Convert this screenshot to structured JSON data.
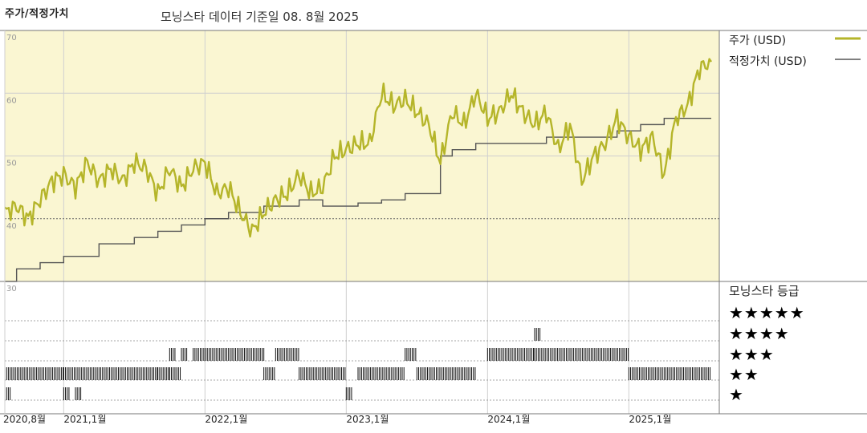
{
  "header": {
    "title": "주가/적정가치",
    "subtitle": "모닝스타 데이터 기준일 08. 8월 2025"
  },
  "legend": {
    "price_label": "주가 (USD)",
    "fair_value_label": "적정가치 (USD)",
    "rating_title": "모닝스타 등급"
  },
  "rating_levels": [
    "★★★★★",
    "★★★★",
    "★★★",
    "★★",
    "★"
  ],
  "colors": {
    "price_line": "#b5b52a",
    "fair_value_line": "#555555",
    "plot_background": "#faf6d2",
    "rating_bar": "#111111"
  },
  "chart_data": {
    "type": "line",
    "x_tick_labels": [
      "2020,8월",
      "2021,1월",
      "2022,1월",
      "2023,1월",
      "2024,1월",
      "2025,1월"
    ],
    "y_ticks": [
      70,
      60,
      50,
      40,
      30
    ],
    "ylim": [
      30,
      70
    ],
    "xlim": [
      "2020-08",
      "2025-08"
    ],
    "grid": true,
    "series": [
      {
        "name": "주가 (USD)",
        "x": [
          "2020-08",
          "2020-09",
          "2020-10",
          "2020-11",
          "2020-12",
          "2021-01",
          "2021-02",
          "2021-03",
          "2021-04",
          "2021-05",
          "2021-06",
          "2021-07",
          "2021-08",
          "2021-09",
          "2021-10",
          "2021-11",
          "2021-12",
          "2022-01",
          "2022-02",
          "2022-03",
          "2022-04",
          "2022-05",
          "2022-06",
          "2022-07",
          "2022-08",
          "2022-09",
          "2022-10",
          "2022-11",
          "2022-12",
          "2023-01",
          "2023-02",
          "2023-03",
          "2023-04",
          "2023-05",
          "2023-06",
          "2023-07",
          "2023-08",
          "2023-09",
          "2023-10",
          "2023-11",
          "2023-12",
          "2024-01",
          "2024-02",
          "2024-03",
          "2024-04",
          "2024-05",
          "2024-06",
          "2024-07",
          "2024-08",
          "2024-09",
          "2024-10",
          "2024-11",
          "2024-12",
          "2025-01",
          "2025-02",
          "2025-03",
          "2025-04",
          "2025-05",
          "2025-06",
          "2025-07",
          "2025-08"
        ],
        "values": [
          41,
          42,
          40,
          43,
          46,
          47,
          45,
          49,
          46,
          48,
          46,
          49,
          48,
          44,
          48,
          45,
          48,
          49,
          44,
          45,
          41,
          38,
          41,
          43,
          44,
          47,
          44,
          45,
          50,
          51,
          52,
          52,
          60,
          58,
          59,
          57,
          55,
          49,
          57,
          55,
          60,
          56,
          57,
          60,
          57,
          55,
          57,
          51,
          55,
          46,
          50,
          52,
          56,
          53,
          51,
          53,
          47,
          56,
          58,
          64,
          65
        ]
      },
      {
        "name": "적정가치 (USD)",
        "x": [
          "2020-08",
          "2020-09",
          "2020-11",
          "2021-01",
          "2021-04",
          "2021-07",
          "2021-09",
          "2021-11",
          "2022-01",
          "2022-03",
          "2022-06",
          "2022-09",
          "2022-11",
          "2023-02",
          "2023-04",
          "2023-06",
          "2023-09",
          "2023-10",
          "2023-12",
          "2024-03",
          "2024-06",
          "2024-09",
          "2024-12",
          "2025-02",
          "2025-04",
          "2025-08"
        ],
        "values": [
          30,
          32,
          33,
          34,
          36,
          37,
          38,
          39,
          40,
          41,
          42,
          43,
          42,
          42.5,
          43,
          44,
          50,
          51,
          52,
          52,
          53,
          53,
          54,
          55,
          56,
          56
        ]
      }
    ]
  },
  "rating_bars": [
    {
      "stars": 1,
      "segments": [
        [
          "2020-08",
          "2020-08"
        ],
        [
          "2021-01",
          "2021-01"
        ],
        [
          "2021-02",
          "2021-02"
        ],
        [
          "2023-01",
          "2023-01"
        ]
      ]
    },
    {
      "stars": 2,
      "segments": [
        [
          "2020-08",
          "2021-01"
        ],
        [
          "2021-01",
          "2021-09"
        ],
        [
          "2021-09",
          "2021-10"
        ],
        [
          "2021-10",
          "2021-11"
        ],
        [
          "2022-06",
          "2022-07"
        ],
        [
          "2022-09",
          "2023-01"
        ],
        [
          "2023-02",
          "2023-06"
        ],
        [
          "2023-07",
          "2023-12"
        ],
        [
          "2025-01",
          "2025-08"
        ]
      ]
    },
    {
      "stars": 3,
      "segments": [
        [
          "2021-10",
          "2021-10"
        ],
        [
          "2021-11",
          "2021-11"
        ],
        [
          "2021-12",
          "2022-06"
        ],
        [
          "2022-07",
          "2022-09"
        ],
        [
          "2023-06",
          "2023-07"
        ],
        [
          "2024-01",
          "2024-05"
        ],
        [
          "2024-05",
          "2025-01"
        ]
      ]
    },
    {
      "stars": 4,
      "segments": [
        [
          "2024-05",
          "2024-05"
        ]
      ]
    },
    {
      "stars": 5,
      "segments": []
    }
  ]
}
